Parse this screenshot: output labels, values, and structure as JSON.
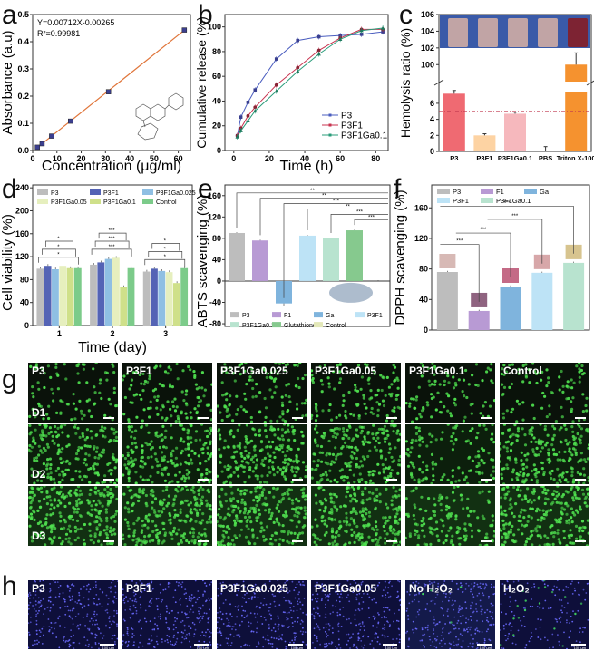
{
  "panel_labels": {
    "a": "a",
    "b": "b",
    "c": "c",
    "d": "d",
    "e": "e",
    "f": "f",
    "g": "g",
    "h": "h"
  },
  "chart_data": [
    {
      "id": "a",
      "type": "scatter",
      "title": "",
      "xlabel": "Concentration (μg/ml)",
      "ylabel": "Absorbance (a.u)",
      "xlim": [
        0,
        65
      ],
      "ylim": [
        0,
        0.5
      ],
      "xticks": [
        0,
        10,
        20,
        30,
        40,
        50,
        60
      ],
      "yticks": [
        0.0,
        0.1,
        0.2,
        0.3,
        0.4,
        0.5
      ],
      "ytick_labels": [
        "0.0",
        "0.1",
        "0.2",
        "0.3",
        "0.4",
        "0.5"
      ],
      "x": [
        1.95,
        3.9,
        7.8,
        15.6,
        31.25,
        62.5
      ],
      "y": [
        0.012,
        0.025,
        0.053,
        0.108,
        0.216,
        0.443
      ],
      "fit": {
        "slope": 0.00712,
        "intercept": -0.00265
      },
      "annotations": [
        "Y=0.00712X-0.00265",
        "R²=0.99981"
      ],
      "marker_color": "#3c3f8f",
      "line_color": "#e0753a",
      "grid": false,
      "inset": "chemical structure"
    },
    {
      "id": "b",
      "type": "line",
      "xlabel": "Time (h)",
      "ylabel": "Cumulative release (%)",
      "xlim": [
        -5,
        87
      ],
      "ylim": [
        0,
        110
      ],
      "xticks": [
        0,
        20,
        40,
        60,
        80
      ],
      "yticks": [
        0,
        20,
        40,
        60,
        80,
        100
      ],
      "x": [
        2,
        4,
        8,
        12,
        24,
        36,
        48,
        60,
        72,
        84
      ],
      "series": [
        {
          "name": "P3",
          "color": "#4a5dbf",
          "marker": "square",
          "values": [
            12,
            27,
            39,
            49,
            74,
            89,
            92,
            93,
            94,
            96
          ]
        },
        {
          "name": "P3F1",
          "color": "#c8334f",
          "marker": "circle",
          "values": [
            12,
            18,
            28,
            35,
            53,
            67,
            81,
            91,
            98,
            98
          ]
        },
        {
          "name": "P3F1Ga0.1",
          "color": "#2a9c7a",
          "marker": "triangle",
          "values": [
            11,
            16,
            24,
            32,
            48,
            64,
            78,
            90,
            97,
            99
          ]
        }
      ],
      "legend": "bottom-right",
      "grid": false
    },
    {
      "id": "c",
      "type": "bar",
      "xlabel": "",
      "ylabel": "Hemolysis ratio (%)",
      "categories": [
        "P3",
        "P3F1",
        "P3F1Ga0.1",
        "PBS",
        "Triton X-100"
      ],
      "values": [
        7.2,
        2.0,
        4.7,
        0.0,
        100.0
      ],
      "errors": [
        0.4,
        0.2,
        0.2,
        0.6,
        1.4
      ],
      "colors": [
        "#ef6a72",
        "#fdd3a3",
        "#f6b8bd",
        "#ffffff",
        "#f5922f"
      ],
      "yticks_lower": [
        0,
        2,
        4,
        6
      ],
      "yticks_upper": [
        100,
        102,
        104,
        106
      ],
      "ylim_lower": [
        0,
        7.8
      ],
      "ylim_upper": [
        98.4,
        106
      ],
      "axis_break": true,
      "threshold_line": 5,
      "threshold_color": "#c0394f",
      "inset": "photo of tubes"
    },
    {
      "id": "d",
      "type": "bar",
      "xlabel": "Time (day)",
      "ylabel": "Cell viability (%)",
      "categories": [
        "1",
        "2",
        "3"
      ],
      "ylim": [
        0,
        245
      ],
      "yticks": [
        0,
        40,
        80,
        120,
        160,
        200,
        240
      ],
      "series": [
        {
          "name": "P3",
          "color": "#bdbdbd",
          "values": [
            99,
            106,
            94
          ]
        },
        {
          "name": "P3F1",
          "color": "#5463b5",
          "values": [
            104,
            110,
            99
          ]
        },
        {
          "name": "P3F1Ga0.025",
          "color": "#8fbfe3",
          "values": [
            98,
            116,
            95
          ]
        },
        {
          "name": "P3F1Ga0.05",
          "color": "#e6efbe",
          "values": [
            104,
            118,
            93
          ]
        },
        {
          "name": "P3F1Ga0.1",
          "color": "#cfe08a",
          "values": [
            100,
            67,
            74
          ]
        },
        {
          "name": "Control",
          "color": "#7ccb8a",
          "values": [
            100,
            100,
            100
          ]
        }
      ],
      "significance": [
        "*",
        "**",
        "***"
      ],
      "legend": "top"
    },
    {
      "id": "e",
      "type": "bar",
      "xlabel": "",
      "ylabel": "ABTS scavenging (%)",
      "categories": [
        "P3",
        "F1",
        "Ga",
        "P3F1",
        "P3F1Ga0.1",
        "Glutathione",
        "Control"
      ],
      "values": [
        90,
        76,
        -42,
        85,
        80,
        95,
        0
      ],
      "colors": [
        "#bdbdbd",
        "#b89ad4",
        "#7fb4dd",
        "#bde3f6",
        "#b8e3cf",
        "#86c98e",
        "#e3e8b8"
      ],
      "ylim": [
        -85,
        180
      ],
      "yticks": [
        -80,
        -40,
        0,
        40,
        80,
        120,
        160
      ],
      "significance": [
        "**",
        "**",
        "***",
        "**",
        "***",
        "***"
      ],
      "legend": "bottom",
      "inset": "photo of tubes"
    },
    {
      "id": "f",
      "type": "bar",
      "xlabel": "",
      "ylabel": "DPPH scavenging (%)",
      "categories": [
        "P3",
        "F1",
        "Ga",
        "P3F1",
        "P3F1Ga0.1"
      ],
      "values": [
        76,
        25,
        57,
        75,
        88
      ],
      "colors": [
        "#bdbdbd",
        "#b89ad4",
        "#7fb4dd",
        "#bde3f6",
        "#b8e3cf"
      ],
      "ylim": [
        0,
        190
      ],
      "yticks": [
        0,
        40,
        80,
        120,
        160
      ],
      "significance": [
        "***",
        "***",
        "***",
        "***"
      ],
      "legend": "top"
    }
  ],
  "panel_g": {
    "columns": [
      "P3",
      "P3F1",
      "P3F1Ga0.025",
      "P3F1Ga0.05",
      "P3F1Ga0.1",
      "Control"
    ],
    "rows": [
      "D1",
      "D2",
      "D3"
    ],
    "densities": [
      [
        0.35,
        0.45,
        0.45,
        0.45,
        0.35,
        0.35
      ],
      [
        0.8,
        0.8,
        0.85,
        0.85,
        0.5,
        0.85
      ],
      [
        0.95,
        0.95,
        0.95,
        0.95,
        0.55,
        0.95
      ]
    ]
  },
  "panel_h": {
    "columns": [
      "P3",
      "P3F1",
      "P3F1Ga0.025",
      "P3F1Ga0.05",
      "No H₂O₂",
      "H₂O₂"
    ],
    "scale_bar": "100 μm"
  }
}
